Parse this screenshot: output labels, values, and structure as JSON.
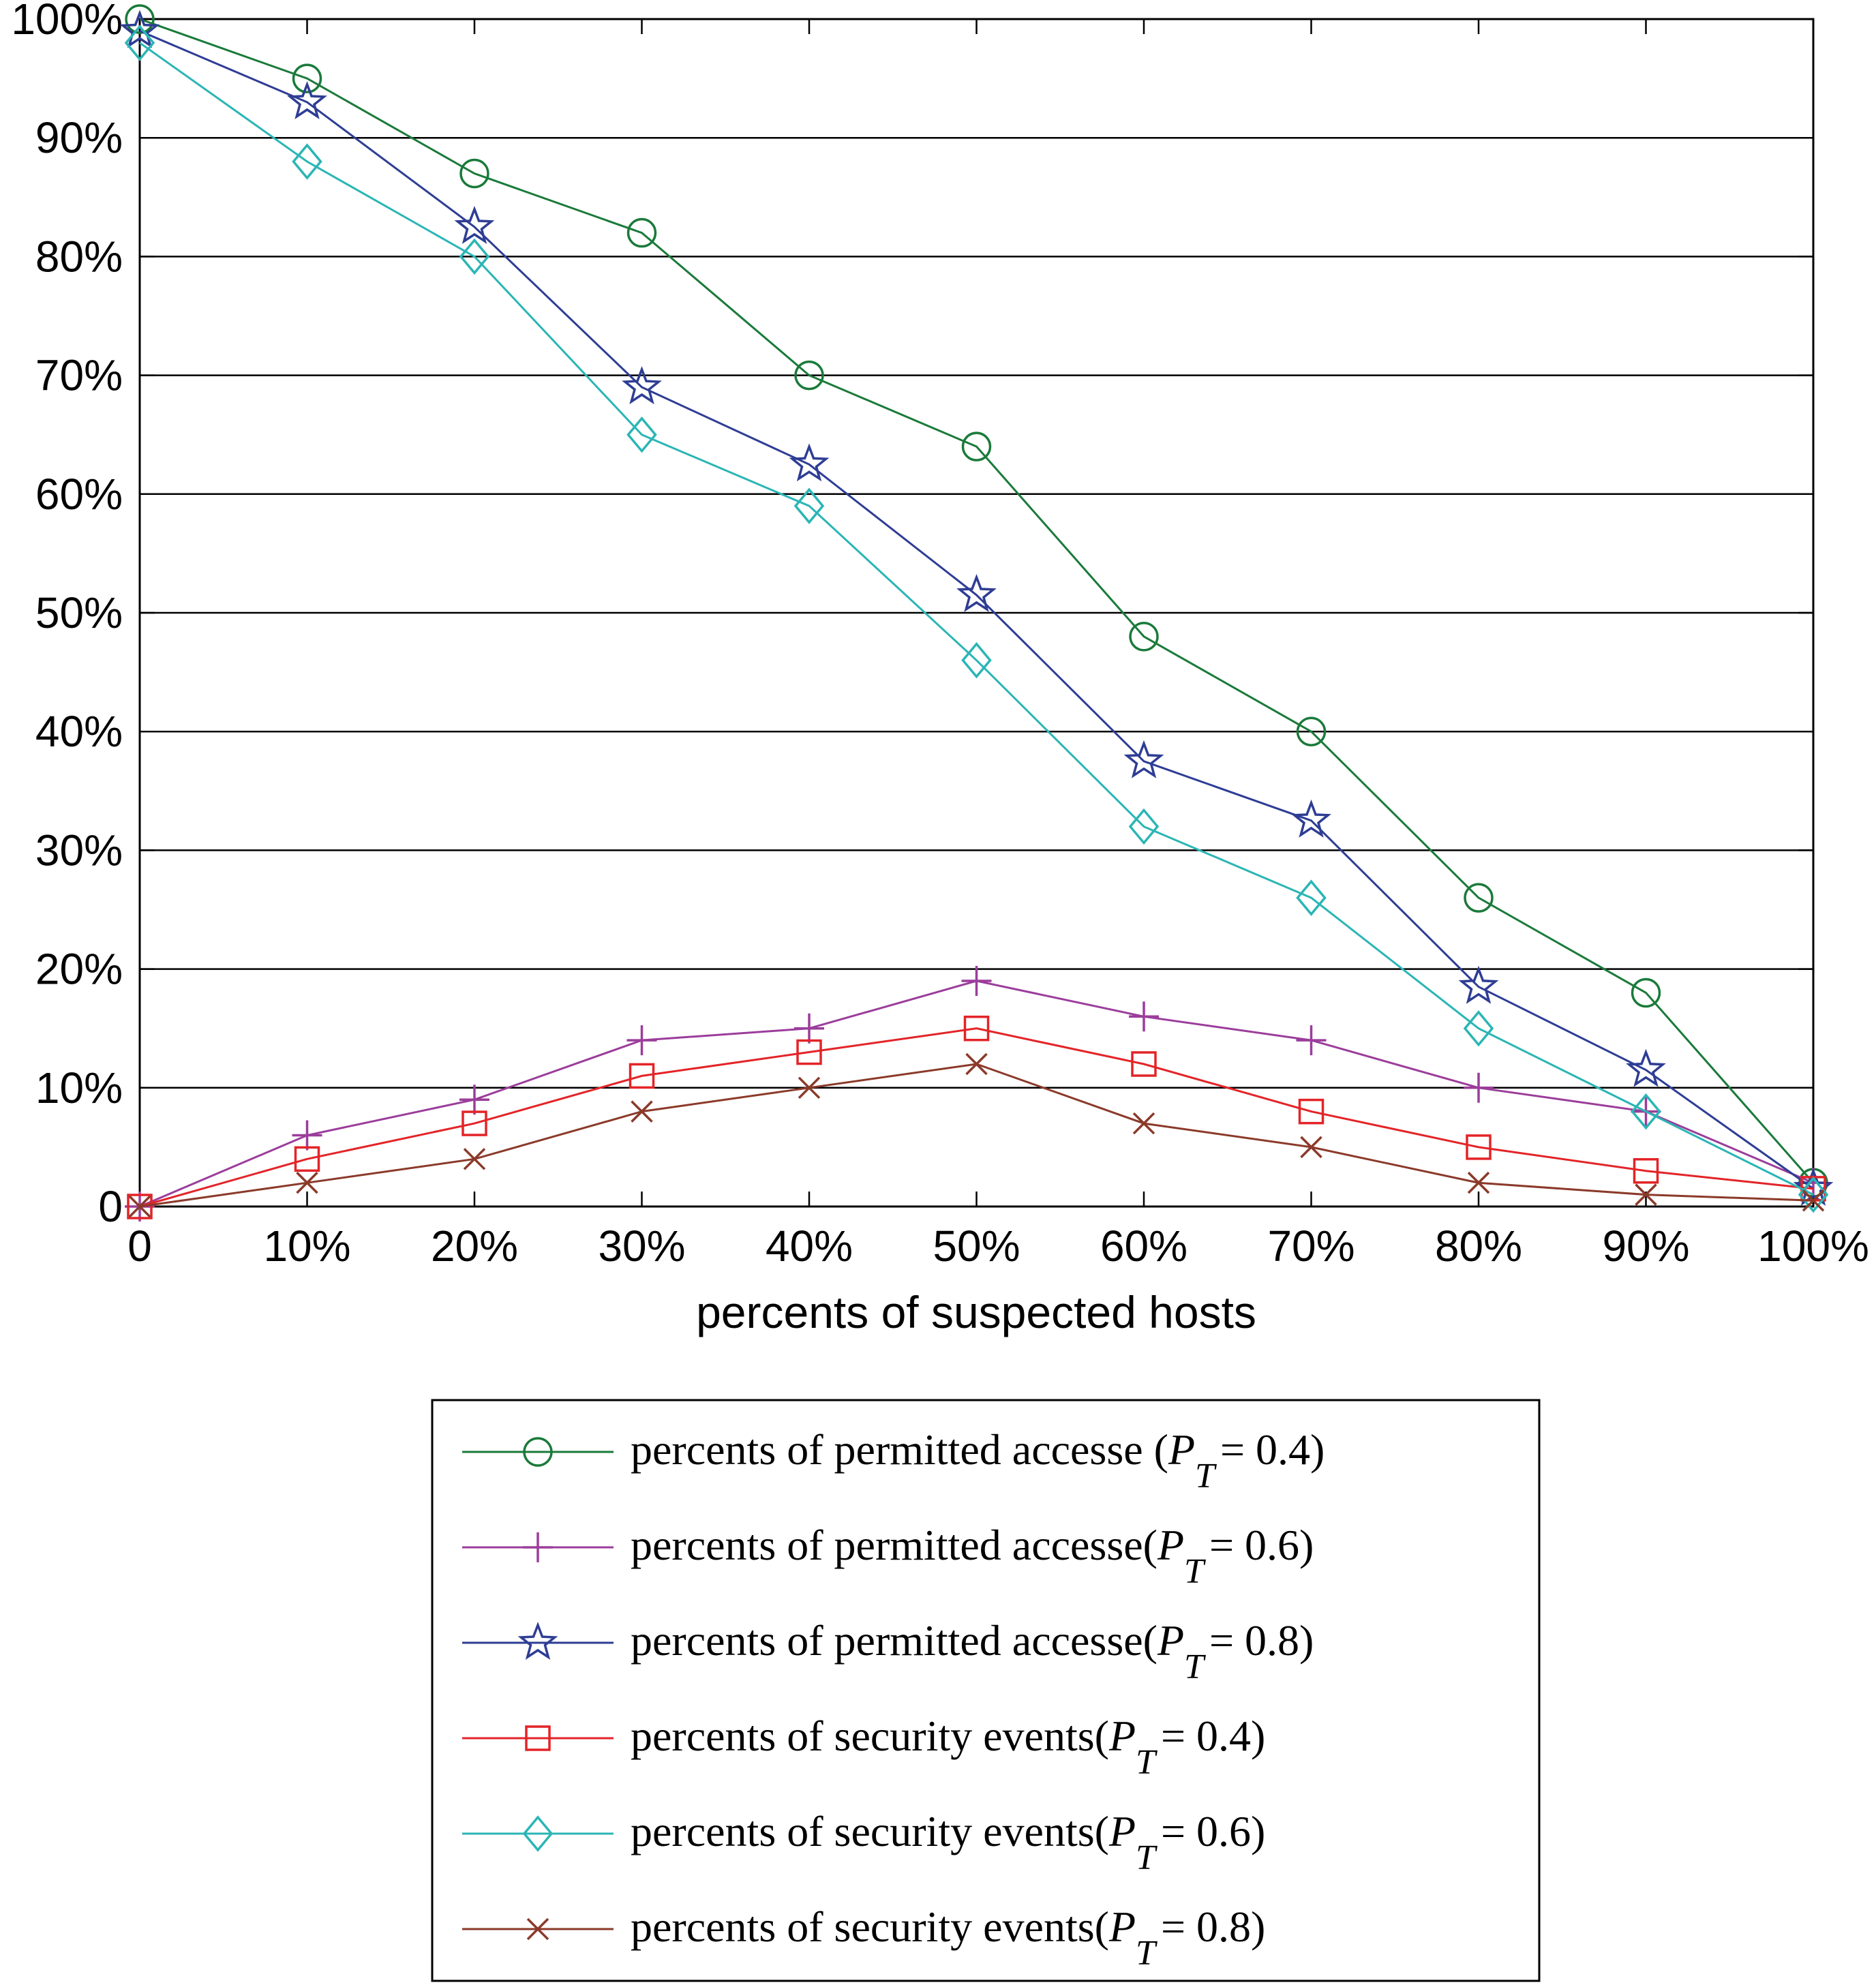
{
  "chart_data": {
    "type": "line",
    "title": "",
    "xlabel": "percents of suspected hosts",
    "ylabel": "",
    "x": [
      0,
      10,
      20,
      30,
      40,
      50,
      60,
      70,
      80,
      90,
      100
    ],
    "x_tick_labels": [
      "0",
      "10%",
      "20%",
      "30%",
      "40%",
      "50%",
      "60%",
      "70%",
      "80%",
      "90%",
      "100%"
    ],
    "y_tick_values": [
      0,
      10,
      20,
      30,
      40,
      50,
      60,
      70,
      80,
      90,
      100
    ],
    "y_tick_labels": [
      "0",
      "10%",
      "20%",
      "30%",
      "40%",
      "50%",
      "60%",
      "70%",
      "80%",
      "90%",
      "100%"
    ],
    "xlim": [
      0,
      100
    ],
    "ylim": [
      0,
      100
    ],
    "grid": "horizontal",
    "legend_position": "below",
    "series": [
      {
        "legend_main": "percents of permitted accesse (",
        "legend_sym": "P",
        "legend_sub": "T",
        "legend_tail": "= 0.4)",
        "color": "#1a7a3a",
        "marker": "circle",
        "values": [
          100,
          95,
          87,
          82,
          70,
          64,
          48,
          40,
          26,
          18,
          2
        ]
      },
      {
        "legend_main": "percents of permitted accesse(",
        "legend_sym": "P",
        "legend_sub": "T",
        "legend_tail": "= 0.6)",
        "color": "#9b3d9b",
        "marker": "plus",
        "values": [
          0,
          6,
          9,
          14,
          15,
          19,
          16,
          14,
          10,
          8,
          2
        ]
      },
      {
        "legend_main": "percents of permitted accesse(",
        "legend_sym": "P",
        "legend_sub": "T",
        "legend_tail": "= 0.8)",
        "color": "#2e3d94",
        "marker": "star",
        "values": [
          99,
          93,
          82.5,
          69,
          62.5,
          51.5,
          37.5,
          32.5,
          18.5,
          11.5,
          1.5
        ]
      },
      {
        "legend_main": "percents of security events(",
        "legend_sym": "P",
        "legend_sub": "T",
        "legend_tail": "= 0.4)",
        "color": "#e32428",
        "marker": "square",
        "values": [
          0,
          4,
          7,
          11,
          13,
          15,
          12,
          8,
          5,
          3,
          1.5
        ]
      },
      {
        "legend_main": "percents of security events(",
        "legend_sym": "P",
        "legend_sub": "T",
        "legend_tail": "= 0.6)",
        "color": "#2bb5b5",
        "marker": "diamond",
        "values": [
          98,
          88,
          80,
          65,
          59,
          46,
          32,
          26,
          15,
          8,
          1
        ]
      },
      {
        "legend_main": "percents of security events(",
        "legend_sym": "P",
        "legend_sub": "T",
        "legend_tail": "= 0.8)",
        "color": "#8b3a2a",
        "marker": "x",
        "values": [
          0,
          2,
          4,
          8,
          10,
          12,
          7,
          5,
          2,
          1,
          0.5
        ]
      }
    ]
  }
}
